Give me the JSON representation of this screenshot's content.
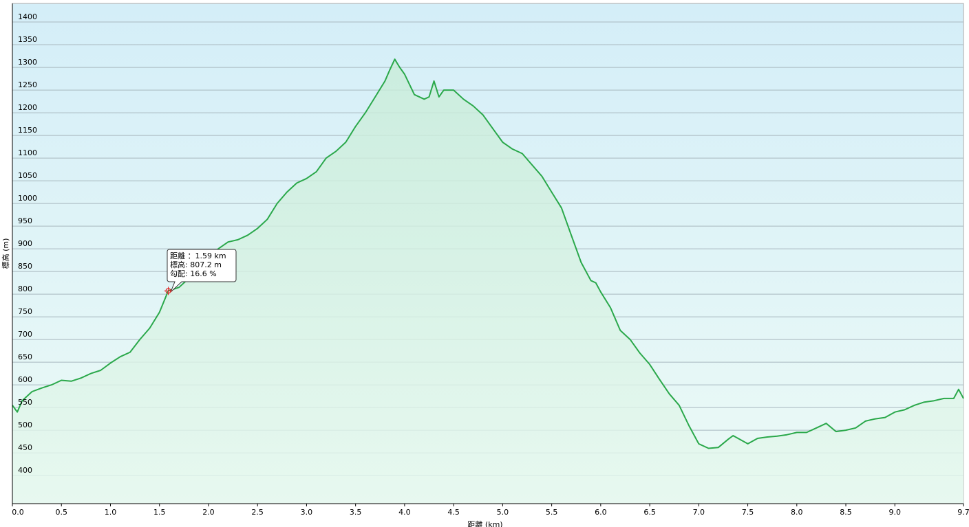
{
  "chart_data": {
    "type": "area",
    "x_label": "距離 (km)",
    "y_label": "標高 (m)",
    "x": [
      0.0,
      0.05,
      0.1,
      0.2,
      0.3,
      0.4,
      0.5,
      0.6,
      0.7,
      0.8,
      0.9,
      1.0,
      1.1,
      1.2,
      1.3,
      1.4,
      1.5,
      1.59,
      1.7,
      1.8,
      1.9,
      2.0,
      2.1,
      2.2,
      2.3,
      2.4,
      2.5,
      2.6,
      2.7,
      2.8,
      2.9,
      3.0,
      3.1,
      3.2,
      3.3,
      3.4,
      3.5,
      3.6,
      3.7,
      3.8,
      3.85,
      3.9,
      3.95,
      4.0,
      4.1,
      4.2,
      4.25,
      4.3,
      4.35,
      4.4,
      4.5,
      4.6,
      4.7,
      4.8,
      4.9,
      5.0,
      5.1,
      5.2,
      5.3,
      5.4,
      5.5,
      5.6,
      5.7,
      5.8,
      5.9,
      5.95,
      6.0,
      6.1,
      6.2,
      6.3,
      6.4,
      6.5,
      6.6,
      6.7,
      6.8,
      6.9,
      7.0,
      7.1,
      7.2,
      7.3,
      7.35,
      7.5,
      7.6,
      7.7,
      7.8,
      7.9,
      8.0,
      8.1,
      8.2,
      8.3,
      8.4,
      8.5,
      8.6,
      8.7,
      8.8,
      8.9,
      9.0,
      9.1,
      9.2,
      9.3,
      9.4,
      9.5,
      9.6,
      9.65,
      9.7
    ],
    "series": [
      {
        "name": "標高",
        "color": "#2aa84a",
        "values": [
          555,
          540,
          565,
          585,
          593,
          600,
          610,
          608,
          615,
          625,
          632,
          648,
          662,
          672,
          700,
          725,
          760,
          807.2,
          815,
          835,
          860,
          880,
          900,
          915,
          920,
          930,
          945,
          965,
          1000,
          1025,
          1045,
          1055,
          1070,
          1100,
          1115,
          1135,
          1170,
          1200,
          1235,
          1270,
          1295,
          1318,
          1300,
          1285,
          1240,
          1230,
          1235,
          1270,
          1235,
          1250,
          1250,
          1230,
          1215,
          1195,
          1165,
          1135,
          1120,
          1110,
          1085,
          1060,
          1025,
          990,
          930,
          870,
          830,
          825,
          805,
          770,
          720,
          700,
          670,
          645,
          612,
          580,
          555,
          510,
          470,
          460,
          462,
          480,
          488,
          470,
          482,
          485,
          487,
          490,
          495,
          495,
          505,
          515,
          497,
          500,
          505,
          520,
          525,
          528,
          540,
          545,
          555,
          562,
          565,
          570,
          570,
          590,
          570
        ]
      }
    ],
    "xlim": [
      0,
      9.7
    ],
    "xticks": [
      {
        "value": 0,
        "label": "0.0"
      },
      0.5,
      {
        "value": 1,
        "label": "1.0"
      },
      1.5,
      {
        "value": 2,
        "label": "2.0"
      },
      2.5,
      {
        "value": 3,
        "label": "3.0"
      },
      3.5,
      {
        "value": 4,
        "label": "4.0"
      },
      4.5,
      {
        "value": 5,
        "label": "5.0"
      },
      5.5,
      {
        "value": 6,
        "label": "6.0"
      },
      6.5,
      {
        "value": 7,
        "label": "7.0"
      },
      7.5,
      {
        "value": 8,
        "label": "8.0"
      },
      8.5,
      {
        "value": 9,
        "label": "9.0"
      },
      9.7
    ],
    "ylim": [
      338,
      1441
    ],
    "yticks": [
      400,
      450,
      500,
      550,
      600,
      650,
      700,
      750,
      800,
      850,
      900,
      950,
      1000,
      1050,
      1100,
      1150,
      1200,
      1250,
      1300,
      1350,
      1400
    ],
    "grid": true,
    "marker": {
      "x": 1.59,
      "y": 807.2
    },
    "annotations": [
      "距離 ：1.59 km",
      "標高: 807.2 m",
      "勾配: 16.6 %"
    ]
  }
}
